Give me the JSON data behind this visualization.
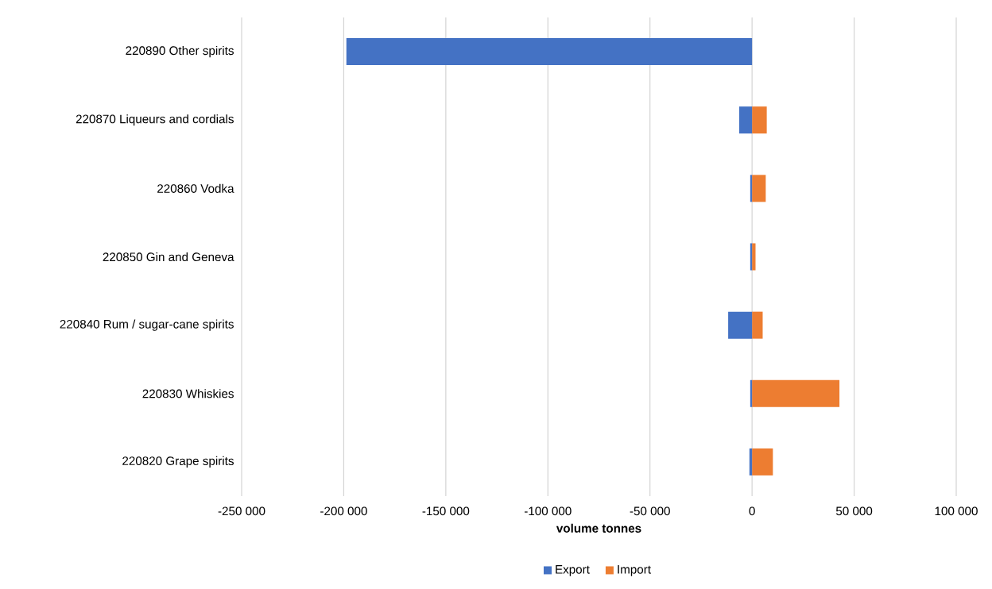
{
  "chart_data": {
    "type": "bar",
    "orientation": "horizontal",
    "xlabel": "volume tonnes",
    "categories": [
      "220890 Other spirits",
      "220870 Liqueurs and cordials",
      "220860 Vodka",
      "220850 Gin and Geneva",
      "220840 Rum / sugar-cane spirits",
      "220830 Whiskies",
      "220820 Grape spirits"
    ],
    "series": [
      {
        "name": "Export",
        "color": "#4472c4",
        "values": [
          -198700,
          -6300,
          -900,
          -900,
          -11700,
          -900,
          -1300
        ]
      },
      {
        "name": "Import",
        "color": "#ed7d31",
        "values": [
          null,
          7200,
          6700,
          1700,
          5200,
          42800,
          10200
        ]
      }
    ],
    "xlim": [
      -250000,
      100000
    ],
    "xticks": [
      {
        "value": -250000,
        "label": "-250 000"
      },
      {
        "value": -200000,
        "label": "-200 000"
      },
      {
        "value": -150000,
        "label": "-150 000"
      },
      {
        "value": -100000,
        "label": "-100 000"
      },
      {
        "value": -50000,
        "label": "-50 000"
      },
      0,
      {
        "value": 50000,
        "label": "50 000"
      },
      {
        "value": 100000,
        "label": "100 000"
      }
    ],
    "grid": "x",
    "legend": "bottom",
    "stacked": true
  }
}
